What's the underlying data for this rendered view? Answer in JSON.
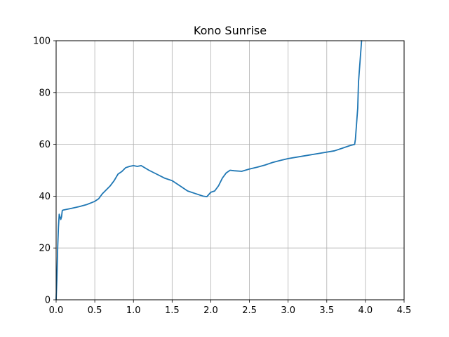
{
  "chart_data": {
    "type": "line",
    "title": "Kono Sunrise",
    "xlabel": "",
    "ylabel": "",
    "xlim": [
      0,
      4.5
    ],
    "ylim": [
      0,
      100
    ],
    "xticks": [
      "0.0",
      "0.5",
      "1.0",
      "1.5",
      "2.0",
      "2.5",
      "3.0",
      "3.5",
      "4.0",
      "4.5"
    ],
    "yticks": [
      "0",
      "20",
      "40",
      "60",
      "80",
      "100"
    ],
    "grid": true,
    "legend": "none",
    "series": [
      {
        "color": "#1f77b4",
        "x": [
          0.0,
          0.01,
          0.02,
          0.03,
          0.04,
          0.05,
          0.06,
          0.07,
          0.08,
          0.09,
          0.1,
          0.15,
          0.2,
          0.3,
          0.4,
          0.5,
          0.55,
          0.6,
          0.65,
          0.7,
          0.75,
          0.8,
          0.85,
          0.9,
          0.95,
          1.0,
          1.05,
          1.1,
          1.2,
          1.3,
          1.4,
          1.5,
          1.6,
          1.7,
          1.8,
          1.9,
          1.95,
          2.0,
          2.05,
          2.1,
          2.15,
          2.2,
          2.25,
          2.3,
          2.4,
          2.5,
          2.6,
          2.7,
          2.8,
          2.9,
          3.0,
          3.2,
          3.4,
          3.6,
          3.7,
          3.8,
          3.86,
          3.87,
          3.88,
          3.9,
          3.91,
          3.93,
          3.95
        ],
        "y": [
          0,
          8,
          20,
          28,
          33,
          32,
          31,
          32,
          34.5,
          34.6,
          34.7,
          35,
          35.3,
          36,
          36.8,
          38,
          39,
          41,
          42.5,
          44,
          46,
          48.5,
          49.5,
          51,
          51.5,
          51.8,
          51.5,
          51.8,
          50,
          48.5,
          47,
          46,
          44,
          42,
          41,
          40,
          39.8,
          41.5,
          42,
          44,
          47,
          49,
          50,
          49.8,
          49.6,
          50.5,
          51.2,
          52,
          53,
          53.8,
          54.5,
          55.5,
          56.5,
          57.5,
          58.5,
          59.5,
          60,
          62,
          66,
          74,
          84,
          92,
          100
        ]
      }
    ]
  }
}
